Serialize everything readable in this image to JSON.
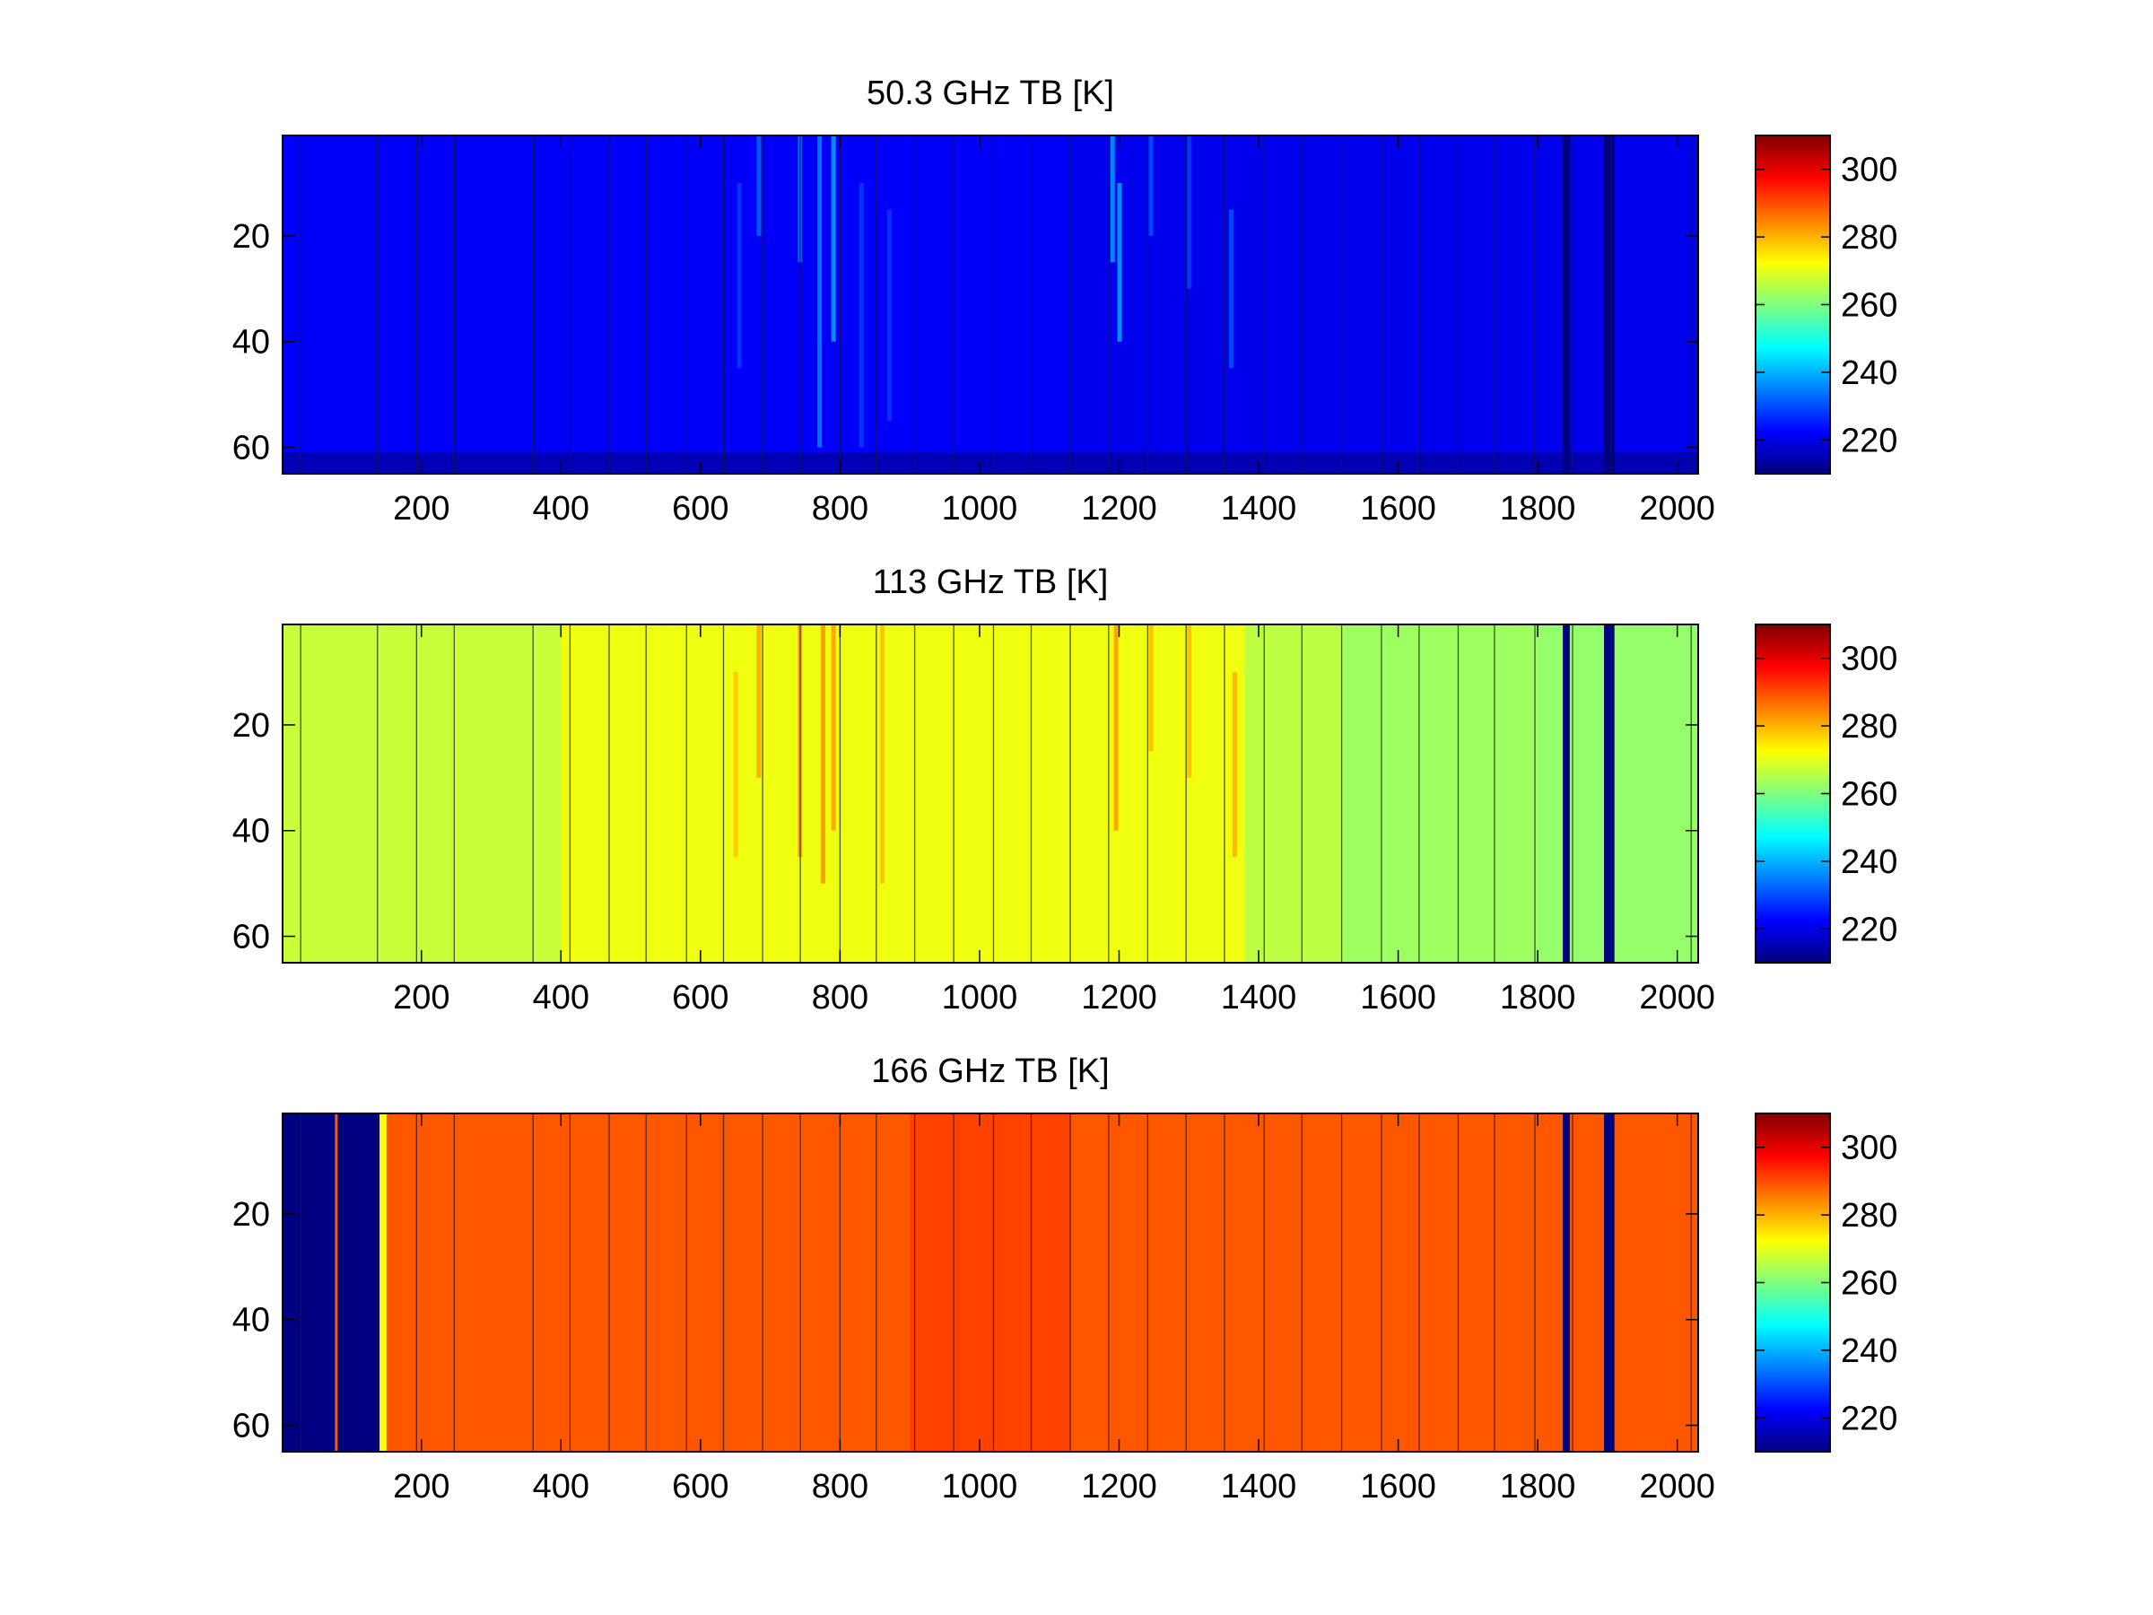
{
  "chart_data": [
    {
      "type": "heatmap",
      "title": "50.3 GHz TB [K]",
      "xlabel": "",
      "ylabel": "",
      "xlim": [
        1,
        2030
      ],
      "ylim": [
        1,
        65
      ],
      "y_reversed": true,
      "xticks": [
        200,
        400,
        600,
        800,
        1000,
        1200,
        1400,
        1600,
        1800,
        2000
      ],
      "yticks": [
        20,
        40,
        60
      ],
      "clim": [
        210,
        310
      ],
      "colorbar_ticks": [
        220,
        240,
        260,
        280,
        300
      ],
      "colormap": "jet",
      "base_value": 222,
      "scan_boundaries": [
        27,
        137,
        193,
        247,
        360,
        413,
        469,
        522,
        580,
        633,
        689,
        743,
        800,
        852,
        907,
        963,
        1020,
        1074,
        1130,
        1185,
        1241,
        1296,
        1351,
        1408,
        1462,
        1519,
        1576,
        1630,
        1686,
        1738,
        1796,
        1850,
        1905,
        2020
      ],
      "features": [
        {
          "x_start": 1125,
          "x_end": 2030,
          "value": 219,
          "type": "gradient_band"
        },
        {
          "x_start": 1,
          "x_end": 2030,
          "y_start": 61,
          "y_end": 65,
          "value": 214,
          "type": "bottom_rows"
        },
        {
          "x_start": 1836,
          "x_end": 1846,
          "value": 208,
          "type": "dark_column"
        },
        {
          "x_start": 1895,
          "x_end": 1910,
          "value": 209,
          "type": "dark_column"
        },
        {
          "x": 683,
          "y_start": 1,
          "y_end": 20,
          "value": 232,
          "type": "streak"
        },
        {
          "x": 655,
          "y_start": 10,
          "y_end": 45,
          "value": 228,
          "type": "streak"
        },
        {
          "x": 742,
          "y_start": 1,
          "y_end": 25,
          "value": 233,
          "type": "streak"
        },
        {
          "x": 770,
          "y_start": 1,
          "y_end": 60,
          "value": 235,
          "type": "streak"
        },
        {
          "x": 790,
          "y_start": 1,
          "y_end": 40,
          "value": 238,
          "type": "streak"
        },
        {
          "x": 830,
          "y_start": 10,
          "y_end": 60,
          "value": 228,
          "type": "streak"
        },
        {
          "x": 870,
          "y_start": 15,
          "y_end": 55,
          "value": 228,
          "type": "streak"
        },
        {
          "x": 1190,
          "y_start": 1,
          "y_end": 25,
          "value": 237,
          "type": "streak"
        },
        {
          "x": 1200,
          "y_start": 10,
          "y_end": 40,
          "value": 238,
          "type": "streak"
        },
        {
          "x": 1245,
          "y_start": 1,
          "y_end": 20,
          "value": 230,
          "type": "streak"
        },
        {
          "x": 1300,
          "y_start": 1,
          "y_end": 30,
          "value": 228,
          "type": "streak"
        },
        {
          "x": 1360,
          "y_start": 15,
          "y_end": 45,
          "value": 230,
          "type": "streak"
        }
      ]
    },
    {
      "type": "heatmap",
      "title": "113 GHz TB [K]",
      "xlabel": "",
      "ylabel": "",
      "xlim": [
        1,
        2030
      ],
      "ylim": [
        1,
        65
      ],
      "y_reversed": true,
      "xticks": [
        200,
        400,
        600,
        800,
        1000,
        1200,
        1400,
        1600,
        1800,
        2000
      ],
      "yticks": [
        20,
        40,
        60
      ],
      "clim": [
        210,
        310
      ],
      "colorbar_ticks": [
        220,
        240,
        260,
        280,
        300
      ],
      "colormap": "jet",
      "base_value": 268,
      "scan_boundaries": [
        27,
        137,
        193,
        247,
        360,
        413,
        469,
        522,
        580,
        633,
        689,
        743,
        800,
        852,
        907,
        963,
        1020,
        1074,
        1130,
        1185,
        1241,
        1296,
        1351,
        1408,
        1462,
        1519,
        1576,
        1630,
        1686,
        1738,
        1796,
        1850,
        1905,
        2020
      ],
      "features": [
        {
          "x_start": 1,
          "x_end": 400,
          "value": 267,
          "type": "band"
        },
        {
          "x_start": 400,
          "x_end": 1380,
          "value": 271,
          "type": "band"
        },
        {
          "x_start": 1380,
          "x_end": 1520,
          "value": 266,
          "type": "band"
        },
        {
          "x_start": 1520,
          "x_end": 1800,
          "value": 263,
          "type": "band"
        },
        {
          "x_start": 1800,
          "x_end": 2030,
          "value": 262,
          "type": "band"
        },
        {
          "x_start": 1836,
          "x_end": 1846,
          "value": 210,
          "type": "dark_column"
        },
        {
          "x_start": 1895,
          "x_end": 1910,
          "value": 210,
          "type": "dark_column"
        },
        {
          "x": 683,
          "y_start": 1,
          "y_end": 30,
          "value": 281,
          "type": "streak"
        },
        {
          "x": 650,
          "y_start": 10,
          "y_end": 45,
          "value": 278,
          "type": "streak"
        },
        {
          "x": 742,
          "y_start": 1,
          "y_end": 45,
          "value": 282,
          "type": "streak"
        },
        {
          "x": 775,
          "y_start": 1,
          "y_end": 50,
          "value": 283,
          "type": "streak"
        },
        {
          "x": 790,
          "y_start": 1,
          "y_end": 40,
          "value": 282,
          "type": "streak"
        },
        {
          "x": 860,
          "y_start": 1,
          "y_end": 50,
          "value": 279,
          "type": "streak"
        },
        {
          "x": 1195,
          "y_start": 1,
          "y_end": 40,
          "value": 282,
          "type": "streak"
        },
        {
          "x": 1245,
          "y_start": 1,
          "y_end": 25,
          "value": 279,
          "type": "streak"
        },
        {
          "x": 1300,
          "y_start": 1,
          "y_end": 30,
          "value": 279,
          "type": "streak"
        },
        {
          "x": 1365,
          "y_start": 10,
          "y_end": 45,
          "value": 280,
          "type": "streak"
        }
      ]
    },
    {
      "type": "heatmap",
      "title": "166 GHz TB [K]",
      "xlabel": "",
      "ylabel": "",
      "xlim": [
        1,
        2030
      ],
      "ylim": [
        1,
        65
      ],
      "y_reversed": true,
      "xticks": [
        200,
        400,
        600,
        800,
        1000,
        1200,
        1400,
        1600,
        1800,
        2000
      ],
      "yticks": [
        20,
        40,
        60
      ],
      "clim": [
        210,
        310
      ],
      "colorbar_ticks": [
        220,
        240,
        260,
        280,
        300
      ],
      "colormap": "jet",
      "base_value": 289,
      "scan_boundaries": [
        27,
        137,
        193,
        247,
        360,
        413,
        469,
        522,
        580,
        633,
        689,
        743,
        800,
        852,
        907,
        963,
        1020,
        1074,
        1130,
        1185,
        1241,
        1296,
        1351,
        1408,
        1462,
        1519,
        1576,
        1630,
        1686,
        1738,
        1796,
        1850,
        1905,
        2020
      ],
      "features": [
        {
          "x_start": 1,
          "x_end": 140,
          "value": 210,
          "type": "dark_column"
        },
        {
          "x_start": 76,
          "x_end": 80,
          "value": 289,
          "type": "band"
        },
        {
          "x_start": 140,
          "x_end": 150,
          "value": 272,
          "type": "band"
        },
        {
          "x_start": 900,
          "x_end": 1130,
          "value": 291,
          "type": "band"
        },
        {
          "x_start": 1836,
          "x_end": 1846,
          "value": 210,
          "type": "dark_column"
        },
        {
          "x_start": 1895,
          "x_end": 1910,
          "value": 210,
          "type": "dark_column"
        }
      ]
    }
  ]
}
